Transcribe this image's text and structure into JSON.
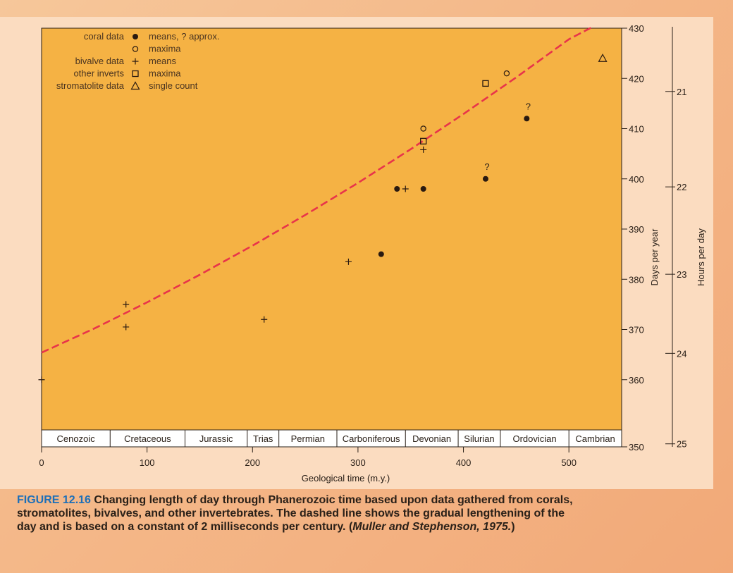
{
  "chart_data": {
    "type": "scatter",
    "xlabel": "Geological time (m.y.)",
    "ylabel_left": "Days per year",
    "ylabel_right": "Hours per day",
    "xlim": [
      0,
      550
    ],
    "ylim": [
      350,
      430
    ],
    "x_ticks": [
      0,
      100,
      200,
      300,
      400,
      500
    ],
    "x_tick_labels": [
      "0",
      "100",
      "200",
      "300",
      "400",
      "500"
    ],
    "y_ticks": [
      350,
      360,
      370,
      380,
      390,
      400,
      410,
      420,
      430
    ],
    "y_tick_labels": [
      "350",
      "360",
      "370",
      "380",
      "390",
      "400",
      "410",
      "420",
      "430"
    ],
    "hours_ticks": [
      {
        "label": "21",
        "days": 417.4
      },
      {
        "label": "22",
        "days": 398.4
      },
      {
        "label": "23",
        "days": 381.0
      },
      {
        "label": "24",
        "days": 365.25
      },
      {
        "label": "25",
        "days": 350.6
      }
    ],
    "eras": [
      {
        "name": "Cenozoic",
        "start": 0,
        "end": 65
      },
      {
        "name": "Cretaceous",
        "start": 65,
        "end": 136
      },
      {
        "name": "Jurassic",
        "start": 136,
        "end": 195
      },
      {
        "name": "Trias",
        "start": 195,
        "end": 225
      },
      {
        "name": "Permian",
        "start": 225,
        "end": 280
      },
      {
        "name": "Carboniferous",
        "start": 280,
        "end": 345
      },
      {
        "name": "Devonian",
        "start": 345,
        "end": 395
      },
      {
        "name": "Silurian",
        "start": 395,
        "end": 435
      },
      {
        "name": "Ordovician",
        "start": 435,
        "end": 500
      },
      {
        "name": "Cambrian",
        "start": 500,
        "end": 550
      }
    ],
    "series": [
      {
        "name": "coral data means",
        "marker": "filled-circle",
        "points": [
          [
            322,
            385
          ],
          [
            337,
            398
          ],
          [
            362,
            398
          ],
          [
            421,
            400
          ],
          [
            460,
            412
          ]
        ],
        "approx_flags": [
          false,
          false,
          false,
          true,
          true
        ]
      },
      {
        "name": "coral data maxima",
        "marker": "open-circle",
        "points": [
          [
            362,
            410
          ],
          [
            441,
            421
          ]
        ]
      },
      {
        "name": "bivalve data means",
        "marker": "plus",
        "points": [
          [
            0,
            360
          ],
          [
            80,
            375
          ],
          [
            80,
            370.5
          ],
          [
            211,
            372
          ],
          [
            291,
            383.5
          ],
          [
            345,
            398
          ],
          [
            362,
            405.8
          ]
        ]
      },
      {
        "name": "other inverts maxima",
        "marker": "open-square",
        "points": [
          [
            362,
            407.5
          ],
          [
            421,
            419
          ]
        ]
      },
      {
        "name": "stromatolite data single count",
        "marker": "open-triangle",
        "points": [
          [
            532,
            424
          ]
        ]
      }
    ],
    "trend_line": {
      "style": "dashed",
      "color": "#e8344a",
      "points": [
        [
          0,
          365.4
        ],
        [
          50,
          370.2
        ],
        [
          100,
          375.4
        ],
        [
          150,
          380.9
        ],
        [
          200,
          386.7
        ],
        [
          250,
          392.8
        ],
        [
          300,
          399.2
        ],
        [
          350,
          405.9
        ],
        [
          400,
          412.9
        ],
        [
          450,
          420.2
        ],
        [
          500,
          427.8
        ],
        [
          521,
          431
        ]
      ]
    },
    "legend": {
      "placement": "top-left",
      "entries": [
        {
          "group": "coral data",
          "marker": "filled-circle",
          "text": "means, ? approx."
        },
        {
          "group": "",
          "marker": "open-circle",
          "text": "maxima"
        },
        {
          "group": "bivalve data",
          "marker": "plus",
          "text": "means"
        },
        {
          "group": "other inverts",
          "marker": "open-square",
          "text": "maxima"
        },
        {
          "group": "stromatolite data",
          "marker": "open-triangle",
          "text": "single count"
        }
      ]
    },
    "approx_mark": "?"
  },
  "colors": {
    "plot_bg": "#f5b244",
    "panel_bg": "#fbdcc0",
    "marker": "#2a1a10",
    "trend": "#e8344a",
    "caption_label": "#1d6fb8"
  },
  "caption": {
    "label": "FIGURE 12.16",
    "text": " Changing length of day through Phanerozoic time based upon data gathered from corals, stromatolites, bivalves, and other invertebrates. The dashed line shows the gradual lengthening of the day and is based on a constant of 2 milliseconds per century. (",
    "citation": "Muller and Stephenson, 1975.",
    "tail": ")"
  }
}
